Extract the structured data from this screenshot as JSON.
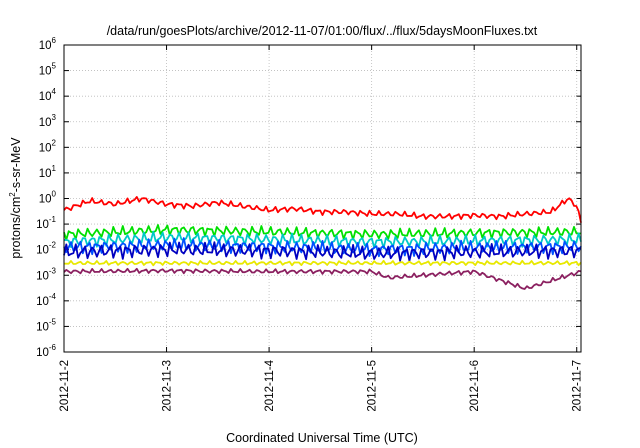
{
  "chart_data": {
    "type": "line",
    "title": "/data/run/goesPlots/archive/2012-11-07/01:00/flux/../flux/5daysMoonFluxes.txt",
    "xlabel": "Coordinated Universal Time (UTC)",
    "ylabel": {
      "prefix": "protons/cm",
      "sup": "2",
      "suffix": "-s-sr-MeV"
    },
    "x_ticks": [
      "2012-11-2",
      "2012-11-3",
      "2012-11-4",
      "2012-11-5",
      "2012-11-6",
      "2012-11-7"
    ],
    "x_range": [
      "2012-11-02",
      "2012-11-07 01:00"
    ],
    "y_scale": "log",
    "y_ticks": [
      {
        "base": "10",
        "exp": "-6"
      },
      {
        "base": "10",
        "exp": "-5"
      },
      {
        "base": "10",
        "exp": "-4"
      },
      {
        "base": "10",
        "exp": "-3"
      },
      {
        "base": "10",
        "exp": "-2"
      },
      {
        "base": "10",
        "exp": "-1"
      },
      {
        "base": "10",
        "exp": "0"
      },
      {
        "base": "10",
        "exp": "1"
      },
      {
        "base": "10",
        "exp": "2"
      },
      {
        "base": "10",
        "exp": "3"
      },
      {
        "base": "10",
        "exp": "4"
      },
      {
        "base": "10",
        "exp": "5"
      },
      {
        "base": "10",
        "exp": "6"
      }
    ],
    "ylim": [
      1e-06,
      1000000.0
    ],
    "grid": true,
    "legend": "none",
    "series": [
      {
        "color": "#ff0000",
        "x": [
          "2012-11-02",
          "2012-11-02 06:00",
          "2012-11-02 12:00",
          "2012-11-02 18:00",
          "2012-11-03",
          "2012-11-03 06:00",
          "2012-11-03 12:00",
          "2012-11-03 18:00",
          "2012-11-04",
          "2012-11-04 06:00",
          "2012-11-04 12:00",
          "2012-11-04 18:00",
          "2012-11-05",
          "2012-11-05 06:00",
          "2012-11-05 12:00",
          "2012-11-05 18:00",
          "2012-11-06",
          "2012-11-06 06:00",
          "2012-11-06 12:00",
          "2012-11-06 18:00",
          "2012-11-06 22:00",
          "2012-11-07",
          "2012-11-07 01:00"
        ],
        "values": [
          0.35,
          0.8,
          0.6,
          1.0,
          0.6,
          0.5,
          0.7,
          0.5,
          0.35,
          0.4,
          0.3,
          0.3,
          0.25,
          0.25,
          0.2,
          0.2,
          0.22,
          0.2,
          0.25,
          0.3,
          1.0,
          0.5,
          0.12
        ]
      },
      {
        "color": "#00e000",
        "x": [
          "2012-11-02",
          "2012-11-03",
          "2012-11-04",
          "2012-11-05",
          "2012-11-06",
          "2012-11-07 01:00"
        ],
        "values": [
          0.04,
          0.06,
          0.05,
          0.04,
          0.045,
          0.05
        ]
      },
      {
        "color": "#00c8c8",
        "x": [
          "2012-11-02",
          "2012-11-03",
          "2012-11-04",
          "2012-11-05",
          "2012-11-06",
          "2012-11-07 01:00"
        ],
        "values": [
          0.02,
          0.03,
          0.025,
          0.02,
          0.022,
          0.025
        ]
      },
      {
        "color": "#0050ff",
        "x": [
          "2012-11-02",
          "2012-11-03",
          "2012-11-04",
          "2012-11-05",
          "2012-11-06",
          "2012-11-07 01:00"
        ],
        "values": [
          0.012,
          0.015,
          0.013,
          0.01,
          0.012,
          0.013
        ]
      },
      {
        "color": "#0000c0",
        "x": [
          "2012-11-02",
          "2012-11-03",
          "2012-11-04",
          "2012-11-05",
          "2012-11-06",
          "2012-11-07 01:00"
        ],
        "values": [
          0.008,
          0.01,
          0.009,
          0.007,
          0.008,
          0.009
        ]
      },
      {
        "color": "#e8e800",
        "x": [
          "2012-11-02",
          "2012-11-03",
          "2012-11-04",
          "2012-11-05",
          "2012-11-06",
          "2012-11-07 01:00"
        ],
        "values": [
          0.003,
          0.003,
          0.003,
          0.003,
          0.003,
          0.003
        ]
      },
      {
        "color": "#8b2060",
        "x": [
          "2012-11-02",
          "2012-11-03",
          "2012-11-04",
          "2012-11-05",
          "2012-11-05 04:00",
          "2012-11-06",
          "2012-11-06 12:00",
          "2012-11-07 01:00"
        ],
        "values": [
          0.0014,
          0.0015,
          0.0014,
          0.0014,
          0.0008,
          0.0014,
          0.0003,
          0.0014
        ]
      }
    ]
  }
}
